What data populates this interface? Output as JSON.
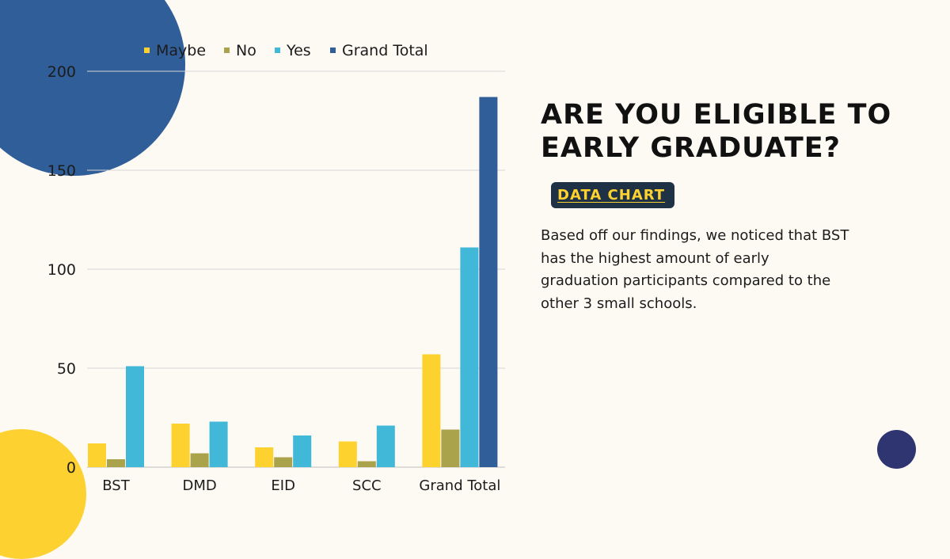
{
  "title": "ARE YOU ELIGIBLE TO EARLY GRADUATE?",
  "badge": "DATA CHART",
  "description": "Based off our findings, we noticed that BST has the highest amount of early graduation participants compared to the other 3 small schools.",
  "colors": {
    "maybe": "#fdd12e",
    "no": "#aaa34b",
    "yes": "#42b8d8",
    "grand_total": "#2f5e99",
    "deco_blue": "#2f5e99",
    "deco_yellow": "#fdd130",
    "deco_navy": "#2f3570",
    "badge_bg": "#1e3145",
    "badge_text": "#fdd130"
  },
  "chart_data": {
    "type": "bar",
    "categories": [
      "BST",
      "DMD",
      "EID",
      "SCC",
      "Grand Total"
    ],
    "series": [
      {
        "name": "Maybe",
        "values": [
          12,
          22,
          10,
          13,
          57
        ]
      },
      {
        "name": "No",
        "values": [
          4,
          7,
          5,
          3,
          19
        ]
      },
      {
        "name": "Yes",
        "values": [
          51,
          23,
          16,
          21,
          111
        ]
      },
      {
        "name": "Grand Total",
        "values": [
          null,
          null,
          null,
          null,
          187
        ]
      }
    ],
    "yticks": [
      0,
      50,
      100,
      150,
      200
    ],
    "ylim": [
      0,
      200
    ],
    "grid": true,
    "legend": "top"
  }
}
